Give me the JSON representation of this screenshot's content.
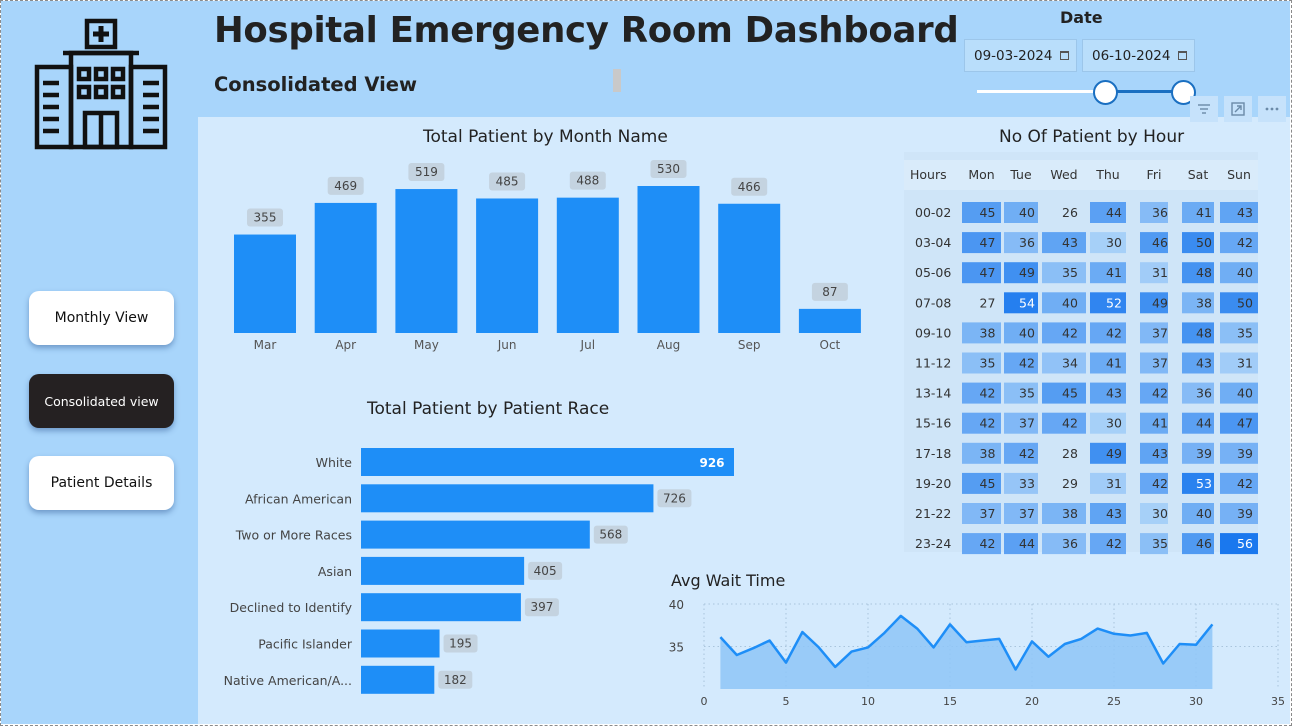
{
  "header": {
    "title": "Hospital Emergency Room Dashboard",
    "subtitle": "Consolidated View"
  },
  "nav": {
    "monthly": "Monthly View",
    "consolidated": "Consolidated view",
    "patient": "Patient Details"
  },
  "date_filter": {
    "label": "Date",
    "start": "09-03-2024",
    "end": "06-10-2024",
    "range_fraction": [
      0.62,
      1.0
    ]
  },
  "icons": {
    "logo": "hospital-icon",
    "calendar": "calendar-icon",
    "filter": "filter-icon",
    "focus": "focus-mode-icon",
    "more": "more-options-icon"
  },
  "colors": {
    "bar": "#1e8ef7",
    "sidebar": "#a8d5fb",
    "panel": "#d4eafd",
    "active_button": "#252122",
    "area_fill": "#8ec6f7",
    "area_line": "#1e8ef7"
  },
  "chart_data": [
    {
      "type": "bar",
      "title": "Total Patient by Month Name",
      "categories": [
        "Mar",
        "Apr",
        "May",
        "Jun",
        "Jul",
        "Aug",
        "Sep",
        "Oct"
      ],
      "values": [
        355,
        469,
        519,
        485,
        488,
        530,
        466,
        87
      ],
      "ylim": [
        0,
        530
      ]
    },
    {
      "type": "bar",
      "orientation": "horizontal",
      "title": "Total Patient by Patient Race",
      "categories": [
        "White",
        "African American",
        "Two or More Races",
        "Asian",
        "Declined to Identify",
        "Pacific Islander",
        "Native American/A..."
      ],
      "values": [
        926,
        726,
        568,
        405,
        397,
        195,
        182
      ]
    },
    {
      "type": "heatmap",
      "title": "No Of Patient by Hour",
      "corner_label": "Hours",
      "columns": [
        "Mon",
        "Tue",
        "Wed",
        "Thu",
        "Fri",
        "Sat",
        "Sun"
      ],
      "rows": [
        "00-02",
        "03-04",
        "05-06",
        "07-08",
        "09-10",
        "11-12",
        "13-14",
        "15-16",
        "17-18",
        "19-20",
        "21-22",
        "23-24"
      ],
      "values": [
        [
          45,
          40,
          26,
          44,
          36,
          41,
          43
        ],
        [
          47,
          36,
          43,
          30,
          46,
          50,
          42
        ],
        [
          47,
          49,
          35,
          41,
          31,
          48,
          40
        ],
        [
          27,
          54,
          40,
          52,
          49,
          38,
          50
        ],
        [
          38,
          40,
          42,
          42,
          37,
          48,
          35
        ],
        [
          35,
          42,
          34,
          41,
          37,
          43,
          31
        ],
        [
          42,
          35,
          45,
          43,
          42,
          36,
          40
        ],
        [
          42,
          37,
          42,
          30,
          41,
          44,
          47
        ],
        [
          38,
          42,
          28,
          49,
          43,
          39,
          39
        ],
        [
          45,
          33,
          29,
          31,
          42,
          53,
          42
        ],
        [
          37,
          37,
          38,
          43,
          30,
          40,
          39
        ],
        [
          42,
          44,
          36,
          42,
          35,
          46,
          56
        ]
      ]
    },
    {
      "type": "area",
      "title": "Avg Wait Time",
      "xlim": [
        0,
        35
      ],
      "ylim": [
        30,
        40
      ],
      "xticks": [
        0,
        5,
        10,
        15,
        20,
        25,
        30,
        35
      ],
      "yticks": [
        35,
        40
      ],
      "x": [
        1,
        2,
        3,
        4,
        5,
        6,
        7,
        8,
        9,
        10,
        11,
        12,
        13,
        14,
        15,
        16,
        17,
        18,
        19,
        20,
        21,
        22,
        23,
        24,
        25,
        26,
        27,
        28,
        29,
        30,
        31
      ],
      "values": [
        36.1,
        34.0,
        34.8,
        35.7,
        33.1,
        36.7,
        34.9,
        32.6,
        34.4,
        34.9,
        36.6,
        38.6,
        37.1,
        34.9,
        37.6,
        35.5,
        35.7,
        35.9,
        32.3,
        35.6,
        33.8,
        35.3,
        35.9,
        37.1,
        36.5,
        36.3,
        36.6,
        33.0,
        35.3,
        35.2,
        37.6
      ]
    }
  ]
}
